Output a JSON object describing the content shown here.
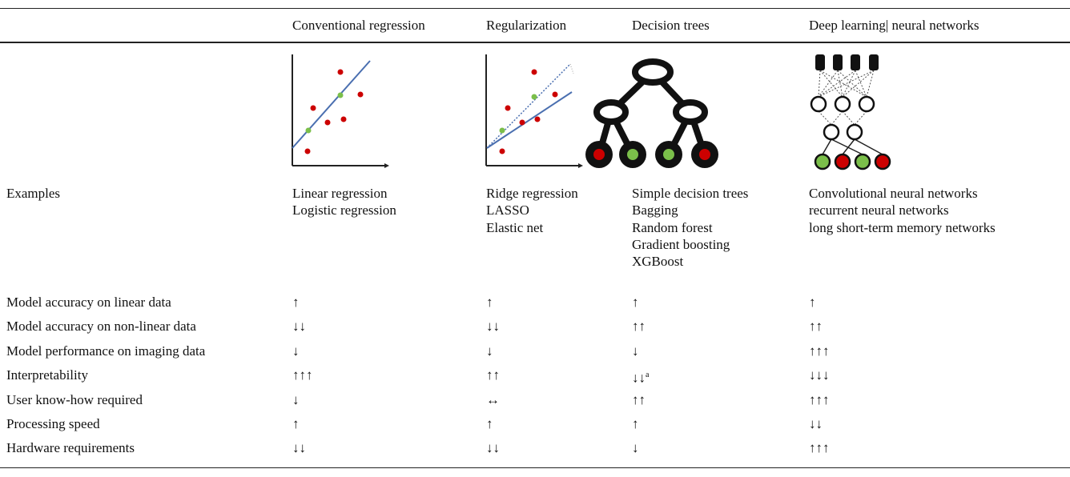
{
  "header": {
    "columns": [
      "Conventional regression",
      "Regularization",
      "Decision trees",
      "Deep learning| neural networks"
    ]
  },
  "examples": {
    "label": "Examples",
    "cells": [
      [
        "Linear regression",
        "Logistic regression"
      ],
      [
        "Ridge regression",
        "LASSO",
        "Elastic net"
      ],
      [
        "Simple decision trees",
        "Bagging",
        "Random forest",
        "Gradient boosting",
        "XGBoost"
      ],
      [
        "Convolutional neural networks",
        "recurrent neural networks",
        "long short-term memory networks"
      ]
    ]
  },
  "rows": [
    {
      "label": "Model accuracy on linear data",
      "cells": [
        "↑",
        "↑",
        "↑",
        "↑"
      ]
    },
    {
      "label": "Model accuracy on non-linear data",
      "cells": [
        "↓↓",
        "↓↓",
        "↑↑",
        "↑↑"
      ]
    },
    {
      "label": "Model performance on imaging data",
      "cells": [
        "↓",
        "↓",
        "↓",
        "↑↑↑"
      ]
    },
    {
      "label": "Interpretability",
      "cells": [
        "↑↑↑",
        "↑↑",
        {
          "text": "↓↓",
          "note": "a"
        },
        "↓↓↓"
      ]
    },
    {
      "label": "User know-how required",
      "cells": [
        "↓",
        "↔",
        "↑↑",
        "↑↑↑"
      ]
    },
    {
      "label": "Processing speed",
      "cells": [
        "↑",
        "↑",
        "↑",
        "↓↓"
      ]
    },
    {
      "label": "Hardware requirements",
      "cells": [
        "↓↓",
        "↓↓",
        "↓",
        "↑↑↑"
      ]
    }
  ]
}
